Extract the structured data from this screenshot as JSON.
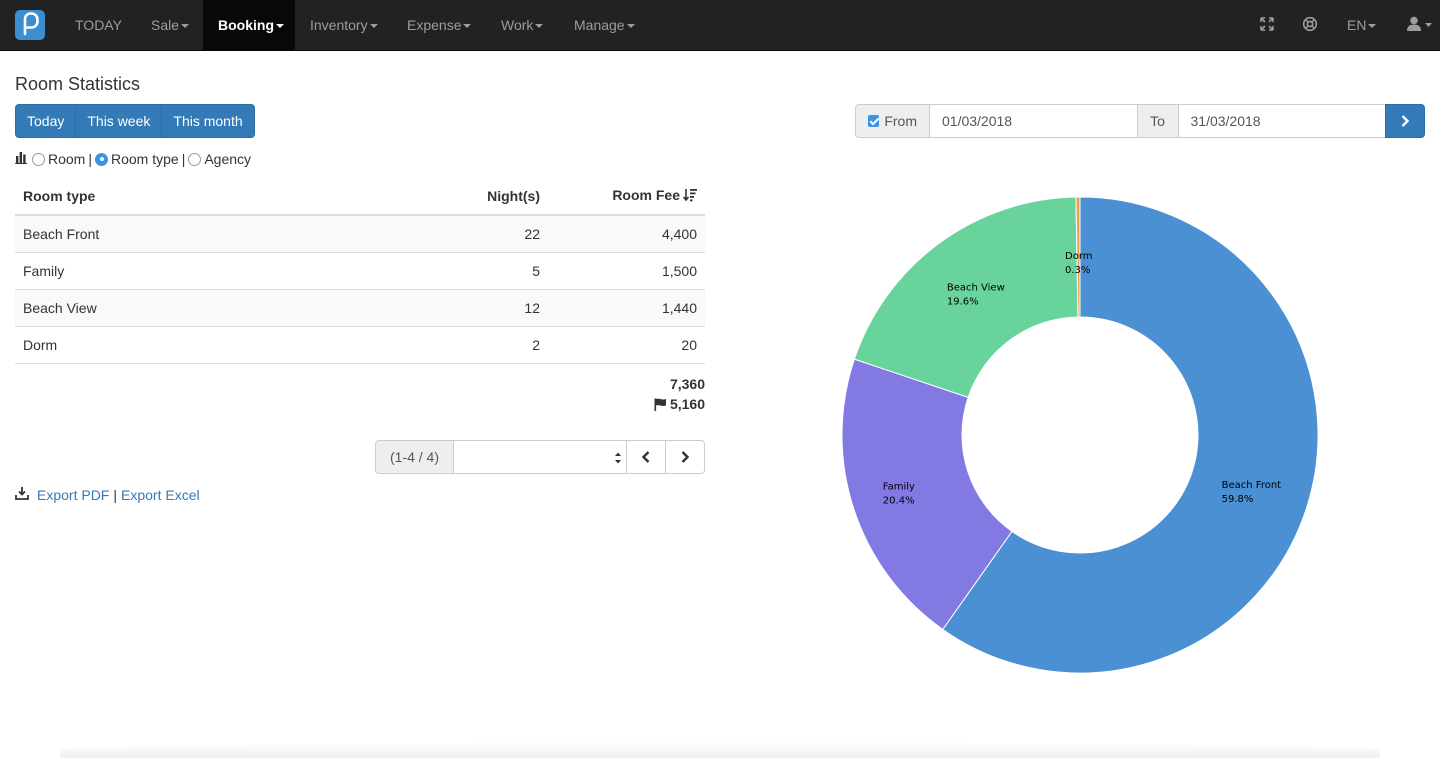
{
  "navbar": {
    "items": [
      {
        "label": "TODAY",
        "dropdown": false,
        "active": false
      },
      {
        "label": "Sale",
        "dropdown": true,
        "active": false
      },
      {
        "label": "Booking",
        "dropdown": true,
        "active": true
      },
      {
        "label": "Inventory",
        "dropdown": true,
        "active": false
      },
      {
        "label": "Expense",
        "dropdown": true,
        "active": false
      },
      {
        "label": "Work",
        "dropdown": true,
        "active": false
      },
      {
        "label": "Manage",
        "dropdown": true,
        "active": false
      }
    ],
    "language": "EN",
    "icons": [
      "fullscreen-icon",
      "support-icon",
      "user-icon"
    ]
  },
  "page": {
    "title": "Room Statistics"
  },
  "period_buttons": [
    "Today",
    "This week",
    "This month"
  ],
  "group_by": {
    "options": [
      "Room",
      "Room type",
      "Agency"
    ],
    "selected": "Room type"
  },
  "table": {
    "headers": {
      "type": "Room type",
      "nights": "Night(s)",
      "fee": "Room Fee"
    },
    "rows": [
      {
        "type": "Beach Front",
        "nights": "22",
        "fee": "4,400"
      },
      {
        "type": "Family",
        "nights": "5",
        "fee": "1,500"
      },
      {
        "type": "Beach View",
        "nights": "12",
        "fee": "1,440"
      },
      {
        "type": "Dorm",
        "nights": "2",
        "fee": "20"
      }
    ],
    "total": "7,360",
    "flagged_total": "5,160"
  },
  "pagination": {
    "info": "(1-4 / 4)",
    "select_value": ""
  },
  "export": {
    "pdf": "Export PDF",
    "separator": "|",
    "excel": "Export Excel"
  },
  "date_filter": {
    "from_label": "From",
    "from_checked": true,
    "from_value": "01/03/2018",
    "to_label": "To",
    "to_value": "31/03/2018"
  },
  "colors": {
    "primary": "#337ab7",
    "navbar_bg": "#222222",
    "beach_front": "#4a90d2",
    "family": "#8279e3",
    "beach_view": "#68d49c",
    "dorm": "#e8a35a"
  },
  "chart_data": {
    "type": "pie",
    "style": "donut",
    "title": "",
    "labels": [
      "Beach Front",
      "Family",
      "Beach View",
      "Dorm"
    ],
    "values": [
      4400,
      1500,
      1440,
      20
    ],
    "percent_labels": [
      "59.8%",
      "20.4%",
      "19.6%",
      "0.3%"
    ],
    "colors": [
      "#4a90d2",
      "#8279e3",
      "#68d49c",
      "#e8a35a"
    ]
  }
}
